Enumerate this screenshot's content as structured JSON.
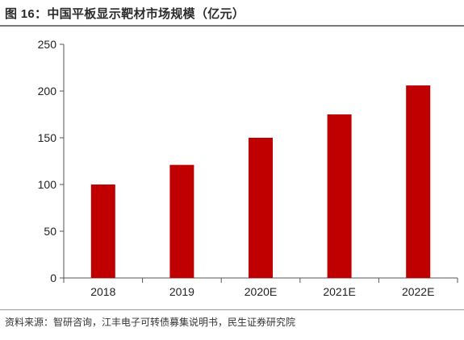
{
  "figure": {
    "title": "图 16：中国平板显示靶材市场规模（亿元）",
    "source": "资料来源：智研咨询，江丰电子可转债募集说明书，民生证券研究院"
  },
  "chart_data": {
    "type": "bar",
    "title": "中国平板显示靶材市场规模（亿元）",
    "categories": [
      "2018",
      "2019",
      "2020E",
      "2021E",
      "2022E"
    ],
    "values": [
      100,
      121,
      150,
      175,
      206
    ],
    "ylim": [
      0,
      250
    ],
    "yticks": [
      0,
      50,
      100,
      150,
      200,
      250
    ],
    "xlabel": "",
    "ylabel": "",
    "grid": false,
    "bar_color": "#c00000",
    "axis_color": "#555555"
  }
}
